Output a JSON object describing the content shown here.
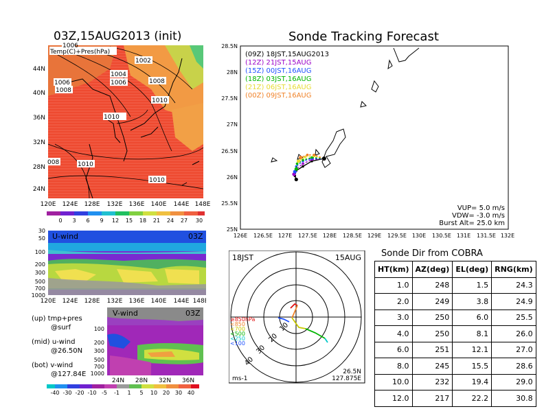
{
  "map_panel": {
    "title": "03Z,15AUG2013 (init)",
    "subtitle": "Temp(C)+Pres(hPa)",
    "lat_ticks": [
      "44N",
      "40N",
      "36N",
      "32N",
      "28N",
      "24N"
    ],
    "lon_ticks": [
      "120E",
      "124E",
      "128E",
      "132E",
      "136E",
      "140E",
      "144E",
      "148E"
    ],
    "isobar_labels": [
      "1006",
      "1002",
      "1004",
      "1006",
      "1006",
      "1008",
      "1008",
      "1010",
      "1010",
      "1010",
      "1010",
      "008",
      "1010"
    ]
  },
  "temp_colorbar": {
    "ticks": [
      "0",
      "3",
      "6",
      "9",
      "12",
      "15",
      "18",
      "21",
      "24",
      "27",
      "30"
    ]
  },
  "uwind_panel": {
    "label": "U-wind",
    "time": "03Z",
    "y_ticks": [
      "30",
      "50",
      "100",
      "200",
      "300",
      "500",
      "700",
      "1000"
    ],
    "x_ticks": [
      "120E",
      "124E",
      "128E",
      "132E",
      "136E",
      "140E",
      "144E",
      "148E"
    ]
  },
  "vwind_panel": {
    "label": "V-wind",
    "time": "03Z",
    "y_ticks": [
      "100",
      "200",
      "300",
      "500",
      "700",
      "1000"
    ],
    "x_ticks": [
      "24N",
      "28N",
      "32N",
      "36N"
    ]
  },
  "panel_notes": [
    {
      "line1": "(up) tmp+pres",
      "line2": "@surf"
    },
    {
      "line1": "(mid) u-wind",
      "line2": "@26.50N"
    },
    {
      "line1": "(bot) v-wind",
      "line2": "@127.84E"
    }
  ],
  "wind_colorbar": {
    "ticks": [
      "-40",
      "-30",
      "-20",
      "-10",
      "-5",
      "-1",
      "1",
      "5",
      "10",
      "20",
      "30",
      "40"
    ]
  },
  "tracking": {
    "title": "Sonde Tracking Forecast",
    "lat_ticks": [
      "28.5N",
      "28N",
      "27.5N",
      "27N",
      "26.5N",
      "26N",
      "25.5N",
      "25N"
    ],
    "lon_ticks": [
      "126E",
      "126.5E",
      "127E",
      "127.5E",
      "128E",
      "128.5E",
      "129E",
      "129.5E",
      "130E",
      "130.5E",
      "131E",
      "131.5E",
      "132E"
    ],
    "legend": [
      {
        "label": "(09Z)  18JST,15AUG2013",
        "color": "#000000"
      },
      {
        "label": "(12Z)  21JST,15AUG",
        "color": "#9b00c8"
      },
      {
        "label": "(15Z)  00JST,16AUG",
        "color": "#1e50ff"
      },
      {
        "label": "(18Z)  03JST,16AUG",
        "color": "#00b400"
      },
      {
        "label": "(21Z)  06JST,16AUG",
        "color": "#e6dc32"
      },
      {
        "label": "(00Z)  09JST,16AUG",
        "color": "#f08228"
      }
    ],
    "params": [
      "VUP= 5.0 m/s",
      "VDW= -3.0 m/s",
      "Burst Alt= 25.0 km"
    ]
  },
  "hodograph": {
    "left_label": "18JST",
    "right_label": "15AUG",
    "pressure_labels": [
      {
        "text": "≥850hPa",
        "color": "#e01010"
      },
      {
        "text": "<850",
        "color": "#f08228"
      },
      {
        "text": "<700",
        "color": "#c8c800"
      },
      {
        "text": "<500",
        "color": "#00b400"
      },
      {
        "text": "<250",
        "color": "#00c8c8"
      },
      {
        "text": "<100",
        "color": "#1e50ff"
      }
    ],
    "ring_labels": [
      "10",
      "20",
      "30",
      "40"
    ],
    "units": "ms-1",
    "loc_lat": "26.5N",
    "loc_lon": "127.875E"
  },
  "cobra_table": {
    "title": "Sonde Dir from COBRA",
    "columns": [
      "HT(km)",
      "AZ(deg)",
      "EL(deg)",
      "RNG(km)"
    ],
    "rows": [
      [
        "1.0",
        "248",
        "1.5",
        "24.3"
      ],
      [
        "2.0",
        "249",
        "3.8",
        "24.9"
      ],
      [
        "3.0",
        "250",
        "6.0",
        "25.5"
      ],
      [
        "4.0",
        "250",
        "8.1",
        "26.0"
      ],
      [
        "6.0",
        "251",
        "12.1",
        "27.0"
      ],
      [
        "8.0",
        "245",
        "15.5",
        "28.6"
      ],
      [
        "10.0",
        "232",
        "19.4",
        "29.0"
      ],
      [
        "12.0",
        "217",
        "22.2",
        "30.8"
      ]
    ]
  },
  "chart_data": {
    "type": "line",
    "title": "Sonde Tracking Forecast",
    "x_axis": "longitude",
    "y_axis": "latitude",
    "xlim": [
      126,
      132
    ],
    "ylim": [
      25,
      28.5
    ],
    "launch": {
      "lon": 127.875,
      "lat": 26.35
    },
    "series": [
      {
        "name": "(09Z)  18JST,15AUG2013",
        "color": "#000000",
        "points": [
          [
            127.875,
            26.35
          ],
          [
            127.6,
            26.3
          ],
          [
            127.4,
            26.2
          ],
          [
            127.25,
            26.12
          ],
          [
            127.22,
            26.02
          ],
          [
            127.25,
            25.95
          ]
        ]
      },
      {
        "name": "(12Z)  21JST,15AUG",
        "color": "#9b00c8",
        "points": [
          [
            127.875,
            26.35
          ],
          [
            127.6,
            26.33
          ],
          [
            127.4,
            26.25
          ],
          [
            127.25,
            26.15
          ],
          [
            127.2,
            26.05
          ]
        ]
      },
      {
        "name": "(15Z)  00JST,16AUG",
        "color": "#1e50ff",
        "points": [
          [
            127.875,
            26.35
          ],
          [
            127.6,
            26.35
          ],
          [
            127.4,
            26.3
          ],
          [
            127.25,
            26.2
          ],
          [
            127.22,
            26.1
          ]
        ]
      },
      {
        "name": "(18Z)  03JST,16AUG",
        "color": "#00b400",
        "points": [
          [
            127.875,
            26.35
          ],
          [
            127.6,
            26.37
          ],
          [
            127.4,
            26.32
          ],
          [
            127.27,
            26.25
          ],
          [
            127.25,
            26.15
          ]
        ]
      },
      {
        "name": "(21Z)  06JST,16AUG",
        "color": "#e6dc32",
        "points": [
          [
            127.875,
            26.35
          ],
          [
            127.65,
            26.4
          ],
          [
            127.45,
            26.38
          ],
          [
            127.3,
            26.3
          ]
        ]
      },
      {
        "name": "(00Z)  09JST,16AUG",
        "color": "#f08228",
        "points": [
          [
            127.875,
            26.35
          ],
          [
            127.65,
            26.42
          ],
          [
            127.5,
            26.42
          ],
          [
            127.35,
            26.37
          ]
        ]
      }
    ]
  }
}
